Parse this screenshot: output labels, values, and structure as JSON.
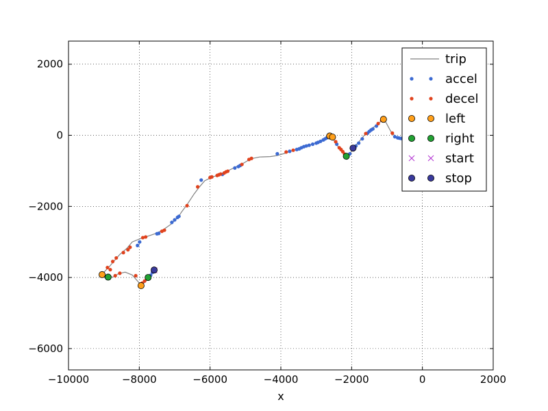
{
  "chart_data": {
    "type": "scatter",
    "title": "",
    "xlabel": "x",
    "ylabel": "",
    "xlim": [
      -10000,
      2000
    ],
    "ylim": [
      -6600,
      2650
    ],
    "xticks": [
      -10000,
      -8000,
      -6000,
      -4000,
      -2000,
      0,
      2000
    ],
    "xtick_labels": [
      "−10000",
      "−8000",
      "−6000",
      "−4000",
      "−2000",
      "0",
      "2000"
    ],
    "yticks": [
      2000,
      0,
      -2000,
      -4000,
      -6000
    ],
    "ytick_labels": [
      "2000",
      "0",
      "−2000",
      "−4000",
      "−6000"
    ],
    "grid": true,
    "legend_position": "top-right",
    "series": [
      {
        "name": "trip",
        "kind": "line",
        "color": "#808080",
        "points": [
          [
            -7570,
            -3800
          ],
          [
            -7700,
            -3960
          ],
          [
            -7820,
            -4120
          ],
          [
            -7950,
            -4220
          ],
          [
            -8050,
            -4100
          ],
          [
            -8200,
            -3930
          ],
          [
            -8400,
            -3850
          ],
          [
            -8600,
            -3900
          ],
          [
            -8750,
            -3990
          ],
          [
            -8900,
            -3960
          ],
          [
            -9050,
            -3910
          ],
          [
            -8950,
            -3800
          ],
          [
            -8850,
            -3700
          ],
          [
            -8700,
            -3520
          ],
          [
            -8550,
            -3350
          ],
          [
            -8350,
            -3180
          ],
          [
            -8200,
            -3000
          ],
          [
            -7950,
            -2900
          ],
          [
            -7700,
            -2820
          ],
          [
            -7500,
            -2750
          ],
          [
            -7300,
            -2640
          ],
          [
            -7100,
            -2500
          ],
          [
            -6900,
            -2300
          ],
          [
            -6800,
            -2150
          ],
          [
            -6650,
            -1950
          ],
          [
            -6450,
            -1650
          ],
          [
            -6300,
            -1450
          ],
          [
            -6150,
            -1280
          ],
          [
            -5950,
            -1180
          ],
          [
            -5700,
            -1100
          ],
          [
            -5500,
            -1000
          ],
          [
            -5250,
            -880
          ],
          [
            -5050,
            -780
          ],
          [
            -4850,
            -660
          ],
          [
            -4600,
            -610
          ],
          [
            -4300,
            -600
          ],
          [
            -4100,
            -570
          ],
          [
            -3900,
            -510
          ],
          [
            -3700,
            -440
          ],
          [
            -3500,
            -380
          ],
          [
            -3300,
            -320
          ],
          [
            -3100,
            -250
          ],
          [
            -2900,
            -180
          ],
          [
            -2750,
            -90
          ],
          [
            -2620,
            -10
          ],
          [
            -2550,
            -50
          ],
          [
            -2450,
            -230
          ],
          [
            -2300,
            -430
          ],
          [
            -2150,
            -600
          ],
          [
            -2000,
            -450
          ],
          [
            -1950,
            -350
          ],
          [
            -1800,
            -190
          ],
          [
            -1600,
            50
          ],
          [
            -1400,
            210
          ],
          [
            -1220,
            350
          ],
          [
            -1120,
            450
          ],
          [
            -1050,
            400
          ],
          [
            -900,
            120
          ],
          [
            -750,
            -50
          ],
          [
            -600,
            -90
          ]
        ]
      },
      {
        "name": "accel",
        "kind": "dots",
        "color": "#3c6ad2",
        "points": [
          [
            -7630,
            -3860
          ],
          [
            -7680,
            -3940
          ],
          [
            -8050,
            -3100
          ],
          [
            -7990,
            -3000
          ],
          [
            -7500,
            -2770
          ],
          [
            -7450,
            -2760
          ],
          [
            -7080,
            -2450
          ],
          [
            -7000,
            -2380
          ],
          [
            -6920,
            -2310
          ],
          [
            -6880,
            -2280
          ],
          [
            -6250,
            -1260
          ],
          [
            -5650,
            -1100
          ],
          [
            -5300,
            -920
          ],
          [
            -5200,
            -880
          ],
          [
            -5150,
            -850
          ],
          [
            -4100,
            -520
          ],
          [
            -3750,
            -450
          ],
          [
            -3550,
            -400
          ],
          [
            -3480,
            -380
          ],
          [
            -3420,
            -350
          ],
          [
            -3350,
            -320
          ],
          [
            -3280,
            -300
          ],
          [
            -3200,
            -280
          ],
          [
            -3100,
            -250
          ],
          [
            -3000,
            -220
          ],
          [
            -2950,
            -200
          ],
          [
            -2880,
            -170
          ],
          [
            -2800,
            -130
          ],
          [
            -2750,
            -100
          ],
          [
            -2700,
            -70
          ],
          [
            -2420,
            -250
          ],
          [
            -2050,
            -520
          ],
          [
            -1950,
            -400
          ],
          [
            -1880,
            -300
          ],
          [
            -1800,
            -220
          ],
          [
            -1700,
            -100
          ],
          [
            -1550,
            60
          ],
          [
            -1500,
            110
          ],
          [
            -1450,
            150
          ],
          [
            -1400,
            180
          ],
          [
            -1300,
            260
          ],
          [
            -780,
            -40
          ],
          [
            -700,
            -70
          ],
          [
            -650,
            -80
          ],
          [
            -600,
            -90
          ]
        ]
      },
      {
        "name": "decel",
        "kind": "dots",
        "color": "#e0421d",
        "points": [
          [
            -7850,
            -4100
          ],
          [
            -7920,
            -4160
          ],
          [
            -8100,
            -3950
          ],
          [
            -8550,
            -3880
          ],
          [
            -8680,
            -3950
          ],
          [
            -8820,
            -3780
          ],
          [
            -8900,
            -3720
          ],
          [
            -8750,
            -3550
          ],
          [
            -8650,
            -3450
          ],
          [
            -8450,
            -3300
          ],
          [
            -8320,
            -3220
          ],
          [
            -8260,
            -3150
          ],
          [
            -7900,
            -2880
          ],
          [
            -7820,
            -2860
          ],
          [
            -7360,
            -2700
          ],
          [
            -7290,
            -2670
          ],
          [
            -6650,
            -1980
          ],
          [
            -6350,
            -1450
          ],
          [
            -6000,
            -1190
          ],
          [
            -5950,
            -1170
          ],
          [
            -5800,
            -1130
          ],
          [
            -5750,
            -1110
          ],
          [
            -5700,
            -1090
          ],
          [
            -5600,
            -1060
          ],
          [
            -5550,
            -1030
          ],
          [
            -5500,
            -1010
          ],
          [
            -5100,
            -820
          ],
          [
            -4900,
            -680
          ],
          [
            -4830,
            -650
          ],
          [
            -3850,
            -470
          ],
          [
            -3650,
            -420
          ],
          [
            -2450,
            -180
          ],
          [
            -2350,
            -350
          ],
          [
            -2300,
            -400
          ],
          [
            -2250,
            -460
          ],
          [
            -2200,
            -530
          ],
          [
            -1600,
            50
          ],
          [
            -1250,
            330
          ],
          [
            -1150,
            420
          ],
          [
            -850,
            60
          ]
        ]
      },
      {
        "name": "left",
        "kind": "markers",
        "color": "#ff9f1a",
        "points": [
          [
            -9050,
            -3920
          ],
          [
            -7950,
            -4230
          ],
          [
            -2620,
            -20
          ],
          [
            -2540,
            -50
          ],
          [
            -1100,
            450
          ]
        ]
      },
      {
        "name": "right",
        "kind": "markers",
        "color": "#22a133",
        "points": [
          [
            -8880,
            -3990
          ],
          [
            -7750,
            -4000
          ],
          [
            -2150,
            -590
          ]
        ]
      },
      {
        "name": "start",
        "kind": "cross",
        "color": "#b02fd1",
        "points": [
          [
            -7570,
            -3800
          ]
        ]
      },
      {
        "name": "stop",
        "kind": "markers",
        "color": "#3a3a9c",
        "points": [
          [
            -7580,
            -3790
          ],
          [
            -1960,
            -360
          ]
        ]
      }
    ]
  }
}
